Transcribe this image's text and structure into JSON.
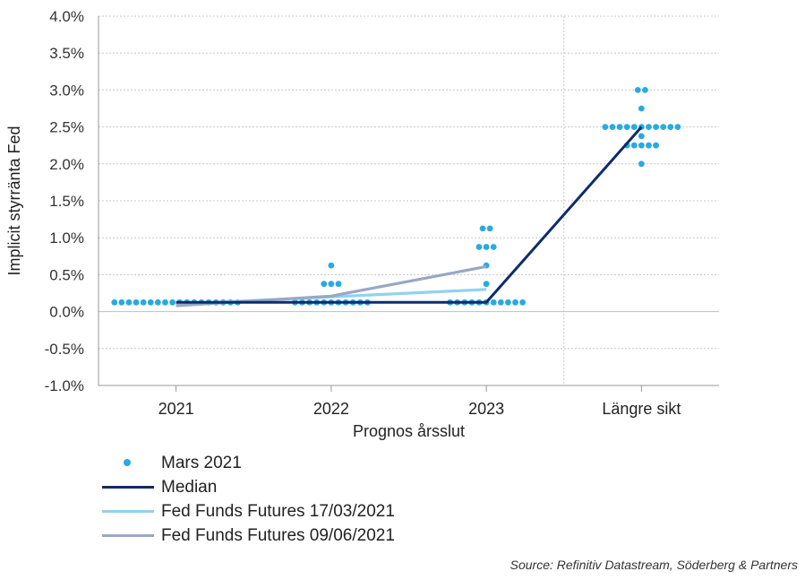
{
  "chart_data": {
    "type": "scatter",
    "xlabel": "Prognos årsslut",
    "ylabel": "Implicit styrränta Fed",
    "categories": [
      "2021",
      "2022",
      "2023",
      "Längre sikt"
    ],
    "ylim": [
      -1.0,
      4.0
    ],
    "y_ticks": [
      "-1.0%",
      "-0.5%",
      "0.0%",
      "0.5%",
      "1.0%",
      "1.5%",
      "2.0%",
      "2.5%",
      "3.0%",
      "3.5%",
      "4.0%"
    ],
    "grid": true,
    "dots": {
      "name": "Mars 2021",
      "color": "#29a9e0",
      "points": [
        {
          "category": 0,
          "value": 0.125,
          "count": 18
        },
        {
          "category": 1,
          "value": 0.125,
          "count": 11
        },
        {
          "category": 1,
          "value": 0.375,
          "count": 3
        },
        {
          "category": 1,
          "value": 0.625,
          "count": 1
        },
        {
          "category": 2,
          "value": 0.125,
          "count": 11
        },
        {
          "category": 2,
          "value": 0.375,
          "count": 1
        },
        {
          "category": 2,
          "value": 0.625,
          "count": 1
        },
        {
          "category": 2,
          "value": 0.875,
          "count": 3
        },
        {
          "category": 2,
          "value": 1.125,
          "count": 2
        },
        {
          "category": 3,
          "value": 2.0,
          "count": 1
        },
        {
          "category": 3,
          "value": 2.25,
          "count": 5
        },
        {
          "category": 3,
          "value": 2.375,
          "count": 1
        },
        {
          "category": 3,
          "value": 2.5,
          "count": 11
        },
        {
          "category": 3,
          "value": 2.75,
          "count": 1
        },
        {
          "category": 3,
          "value": 3.0,
          "count": 2
        }
      ]
    },
    "series": [
      {
        "name": "Median",
        "color": "#0d2c6b",
        "values": [
          0.125,
          0.125,
          0.125,
          2.5
        ]
      },
      {
        "name": "Fed Funds Futures 17/03/2021",
        "color": "#8fd3ee",
        "values": [
          0.1,
          0.2,
          0.3,
          null
        ]
      },
      {
        "name": "Fed Funds Futures 09/06/2021",
        "color": "#98a8c3",
        "values": [
          0.08,
          0.21,
          0.61,
          null
        ]
      }
    ]
  },
  "legend": {
    "dots_label": "Mars 2021",
    "median_label": "Median",
    "futures1_label": "Fed Funds Futures 17/03/2021",
    "futures2_label": "Fed Funds Futures 09/06/2021"
  },
  "source": "Source: Refinitiv Datastream, Söderberg & Partners"
}
